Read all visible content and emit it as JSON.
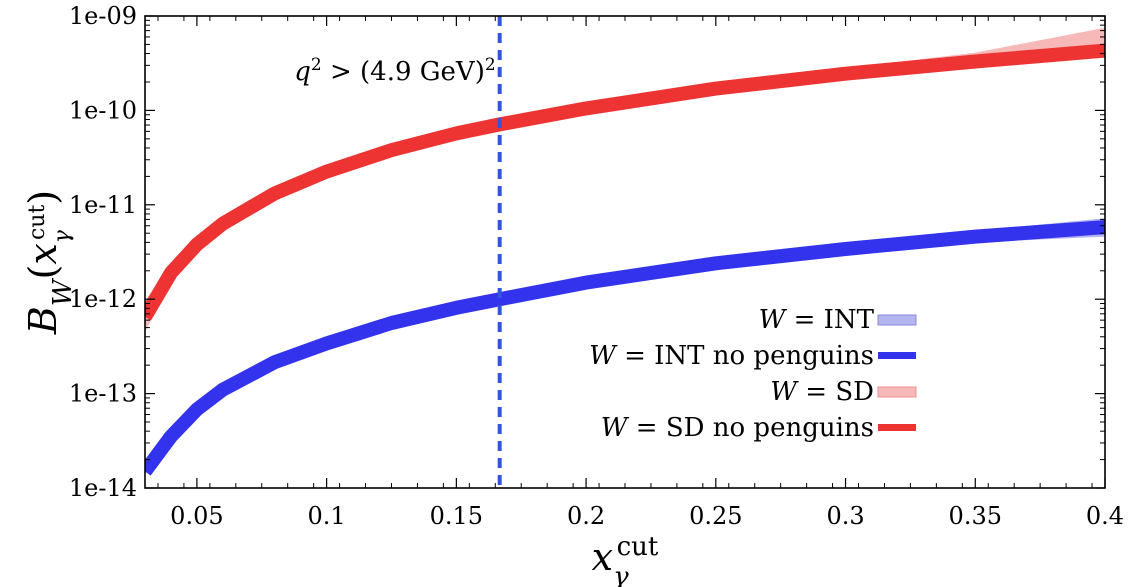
{
  "chart_data": {
    "type": "line",
    "xlabel": "x_γ^cut",
    "ylabel": "B_W(x_γ^cut)",
    "xlim": [
      0.03,
      0.4
    ],
    "ylim": [
      1e-14,
      1e-09
    ],
    "yscale": "log",
    "grid": false,
    "legend_placement": "lower-right",
    "x_ticks": [
      0.05,
      0.1,
      0.15,
      0.2,
      0.25,
      0.3,
      0.35,
      0.4
    ],
    "x_tick_labels": [
      "0.05",
      "0.1",
      "0.15",
      "0.2",
      "0.25",
      "0.3",
      "0.35",
      "0.4"
    ],
    "y_ticks": [
      1e-14,
      1e-13,
      1e-12,
      1e-11,
      1e-10,
      1e-09
    ],
    "y_tick_labels": [
      "1e-14",
      "1e-13",
      "1e-12",
      "1e-11",
      "1e-10",
      "1e-09"
    ],
    "x": [
      0.03,
      0.04,
      0.05,
      0.06,
      0.08,
      0.1,
      0.125,
      0.15,
      0.1667,
      0.2,
      0.25,
      0.3,
      0.35,
      0.4
    ],
    "series": [
      {
        "name": "W = INT",
        "style": "band",
        "color": "#b4b4f0",
        "lower": [
          1.4e-14,
          3.3e-14,
          6.4e-14,
          1.02e-13,
          2e-13,
          3.2e-13,
          5.2e-13,
          7.6e-13,
          9.4e-13,
          1.4e-12,
          2.2e-12,
          3.1e-12,
          4e-12,
          4.6e-12
        ],
        "upper": [
          1.7e-14,
          3.8e-14,
          7.4e-14,
          1.18e-13,
          2.3e-13,
          3.7e-13,
          6e-13,
          8.8e-13,
          1.1e-12,
          1.65e-12,
          2.7e-12,
          3.9e-12,
          5.3e-12,
          7.2e-12
        ]
      },
      {
        "name": "W = INT no penguins",
        "style": "line",
        "color": "#3333ee",
        "values": [
          1.5e-14,
          3.5e-14,
          6.8e-14,
          1.1e-13,
          2.15e-13,
          3.4e-13,
          5.6e-13,
          8.1e-13,
          1e-12,
          1.5e-12,
          2.4e-12,
          3.4e-12,
          4.6e-12,
          5.8e-12
        ]
      },
      {
        "name": "W = SD",
        "style": "band",
        "color": "#f7b8b8",
        "lower": [
          4.5e-13,
          1.5e-12,
          3.2e-12,
          5.5e-12,
          1.2e-11,
          2.1e-11,
          3.6e-11,
          5.4e-11,
          6.8e-11,
          1e-10,
          1.6e-10,
          2.3e-10,
          3.1e-10,
          3.8e-10
        ],
        "upper": [
          9.5e-13,
          2.4e-12,
          4.6e-12,
          7.4e-12,
          1.5e-11,
          2.5e-11,
          4.2e-11,
          6.2e-11,
          7.7e-11,
          1.15e-10,
          1.9e-10,
          2.8e-10,
          4.1e-10,
          7.5e-10
        ]
      },
      {
        "name": "W = SD no penguins",
        "style": "line",
        "color": "#ee3333",
        "values": [
          6.5e-13,
          1.9e-12,
          3.8e-12,
          6.3e-12,
          1.32e-11,
          2.25e-11,
          3.8e-11,
          5.7e-11,
          7.1e-11,
          1.05e-10,
          1.7e-10,
          2.45e-10,
          3.3e-10,
          4.3e-10
        ]
      }
    ],
    "reference_line": {
      "x": 0.1667,
      "color": "#3355dd",
      "style": "dashed"
    },
    "annotations": [
      {
        "text": "q² > (4.9 GeV)²"
      }
    ]
  }
}
